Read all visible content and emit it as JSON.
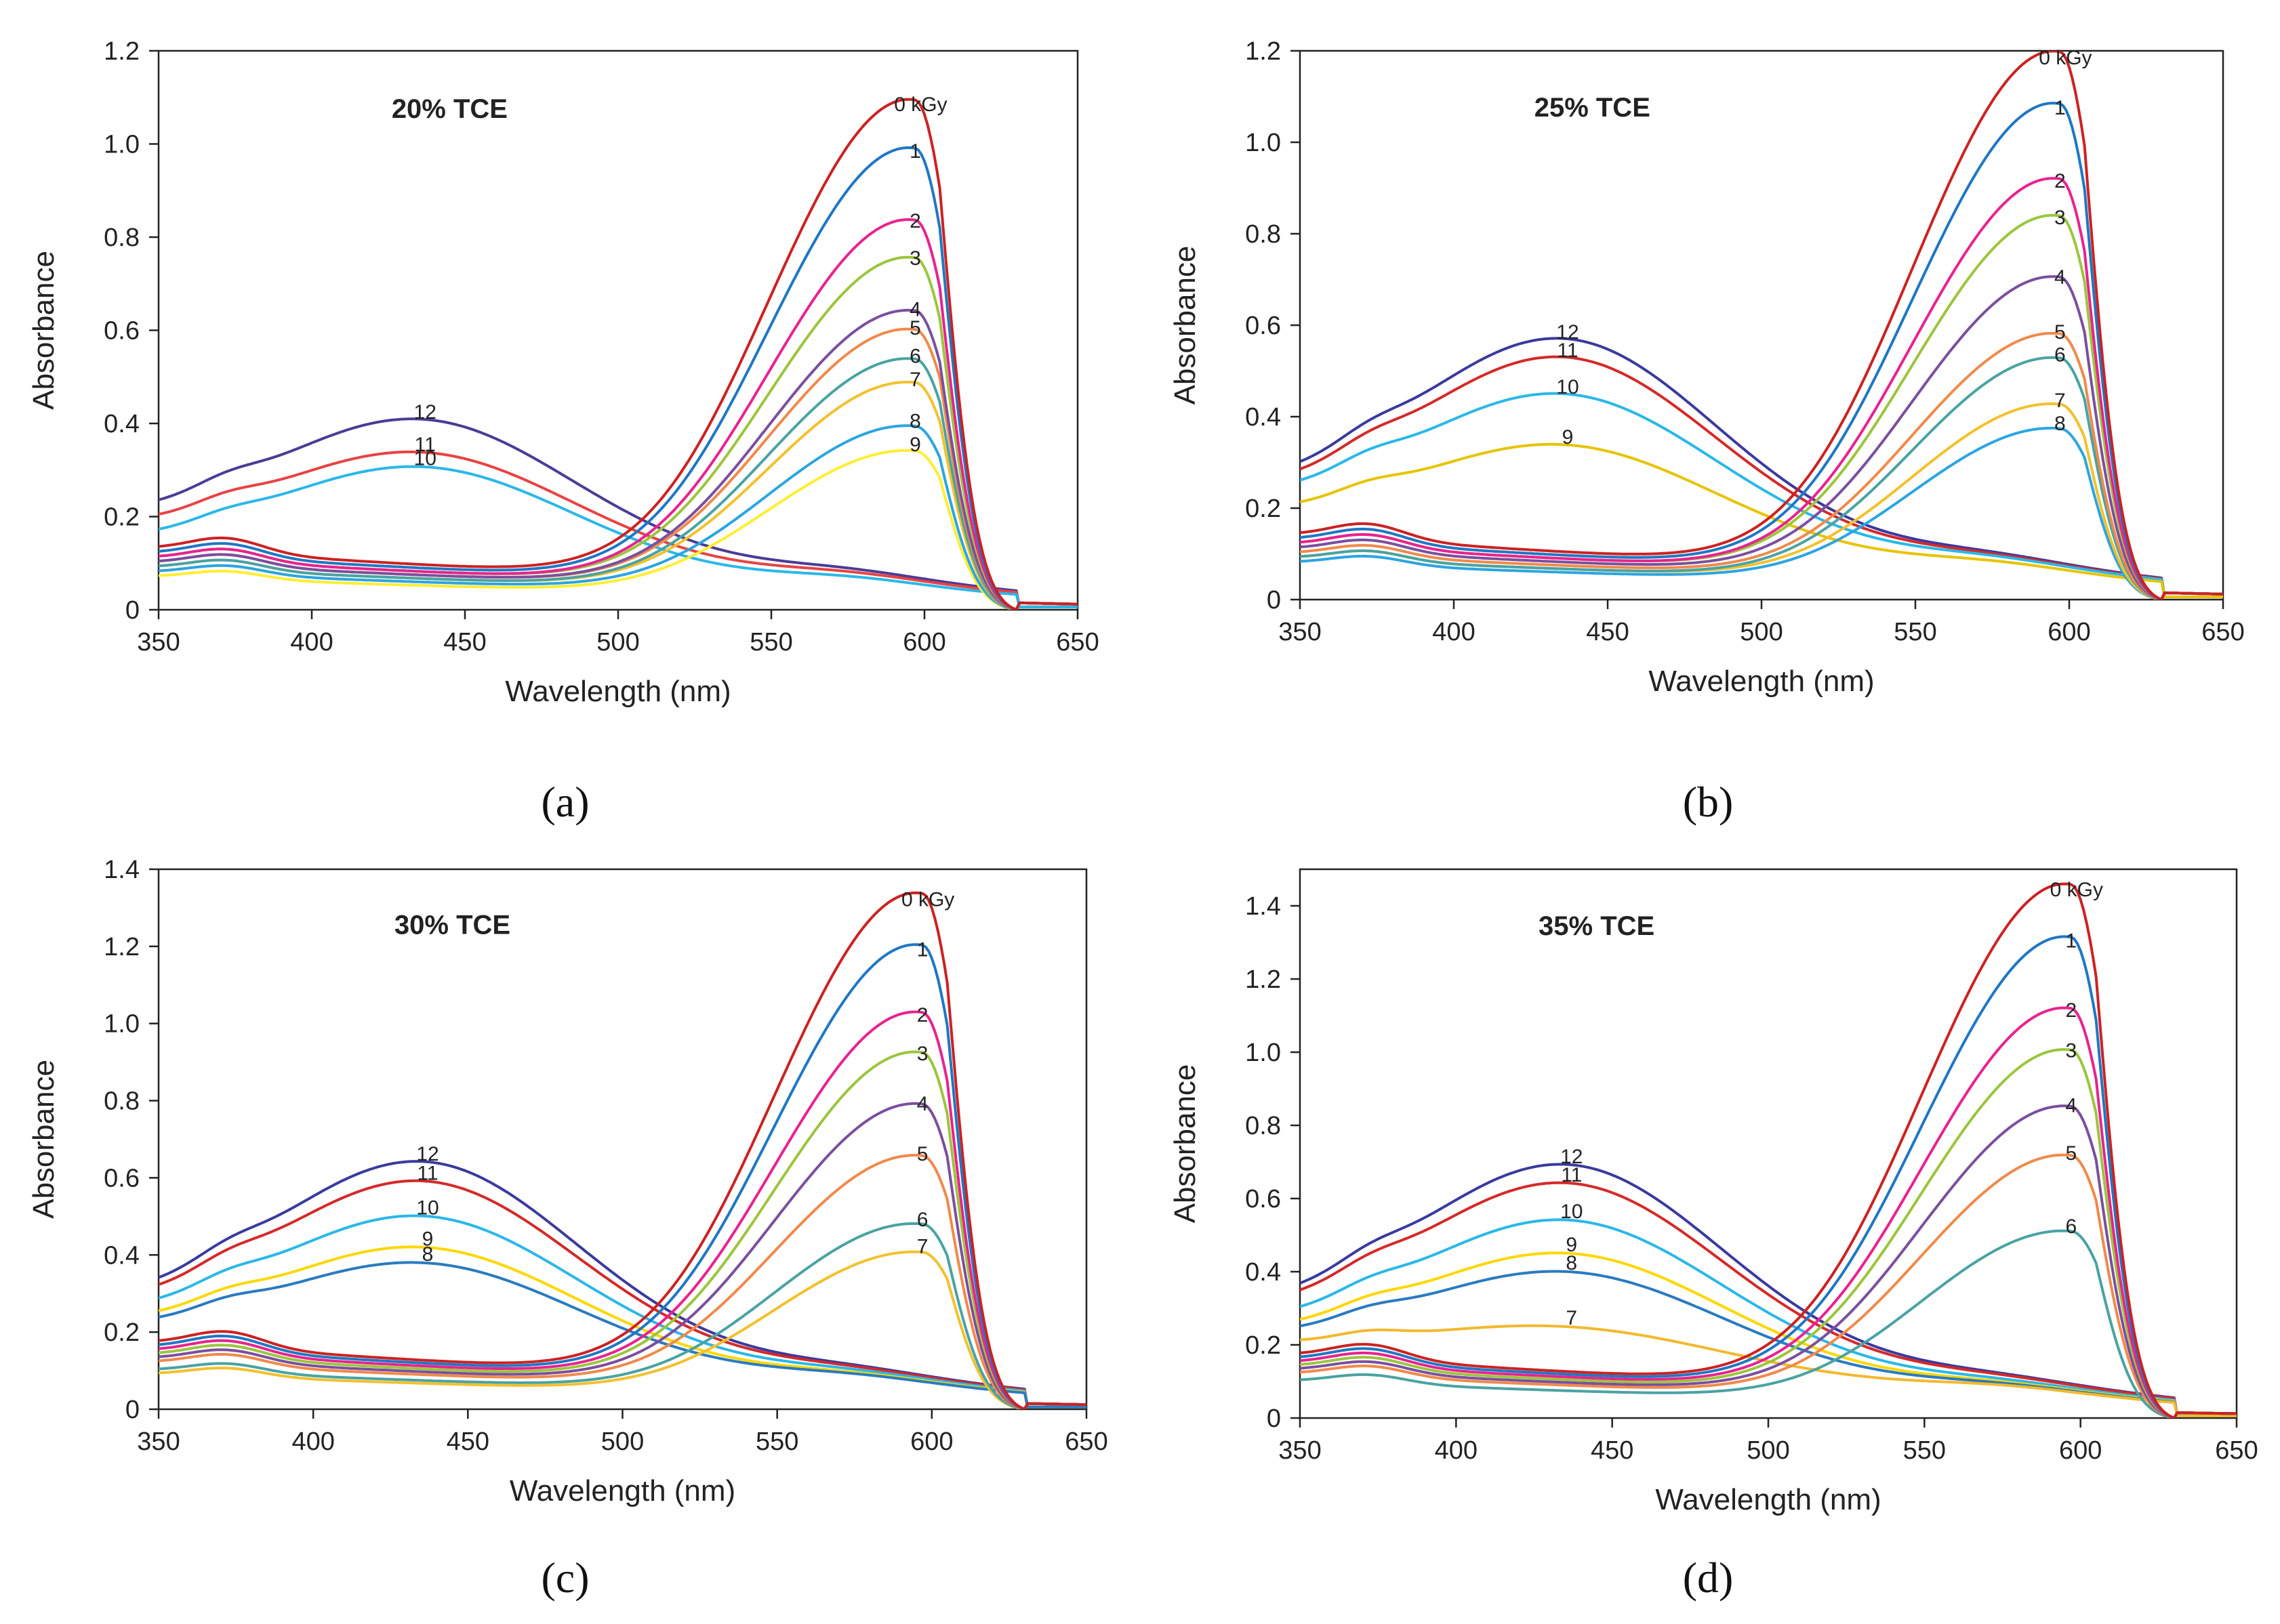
{
  "chart_data": [
    {
      "type": "line",
      "panel_label": "(a)",
      "title": "20% TCE",
      "xlabel": "Wavelength (nm)",
      "ylabel": "Absorbance",
      "xlim": [
        350,
        650
      ],
      "ylim": [
        0,
        1.2
      ],
      "xticks": [
        "350",
        "400",
        "450",
        "500",
        "550",
        "600",
        "650"
      ],
      "yticks": [
        "0",
        "0.2",
        "0.4",
        "0.6",
        "0.8",
        "1.0",
        "1.2"
      ],
      "band_type": "orange",
      "series": [
        {
          "name": "0 kGy",
          "label": "0 kGy",
          "color": "#cc2222",
          "p600": 1.05,
          "base": 0.13
        },
        {
          "name": "1",
          "label": "1",
          "color": "#1f77c4",
          "p600": 0.95,
          "base": 0.12
        },
        {
          "name": "2",
          "label": "2",
          "color": "#e8238f",
          "p600": 0.8,
          "base": 0.11
        },
        {
          "name": "3",
          "label": "3",
          "color": "#9bc53d",
          "p600": 0.72,
          "base": 0.11
        },
        {
          "name": "4",
          "label": "4",
          "color": "#7b4f9e",
          "p600": 0.61,
          "base": 0.1
        },
        {
          "name": "5",
          "label": "5",
          "color": "#f08a4b",
          "p600": 0.57,
          "base": 0.1
        },
        {
          "name": "6",
          "label": "6",
          "color": "#4aa3a3",
          "p600": 0.51,
          "base": 0.09
        },
        {
          "name": "7",
          "label": "7",
          "color": "#f2c12e",
          "p600": 0.46,
          "base": 0.09
        },
        {
          "name": "8",
          "label": "8",
          "color": "#2ca5e0",
          "p600": 0.37,
          "base": 0.08
        },
        {
          "name": "9",
          "label": "9",
          "color": "#ffee33",
          "p600": 0.32,
          "base": 0.07
        },
        {
          "name": "10",
          "label": "10",
          "color": "#2ab8e8",
          "p440": 0.29,
          "base": 0.12
        },
        {
          "name": "11",
          "label": "11",
          "color": "#e84343",
          "p440": 0.32,
          "base": 0.15
        },
        {
          "name": "12",
          "label": "12",
          "color": "#4b3c96",
          "p440": 0.39,
          "base": 0.17
        }
      ]
    },
    {
      "type": "line",
      "panel_label": "(b)",
      "title": "25% TCE",
      "xlabel": "Wavelength (nm)",
      "ylabel": "Absorbance",
      "xlim": [
        350,
        650
      ],
      "ylim": [
        0,
        1.2
      ],
      "xticks": [
        "350",
        "400",
        "450",
        "500",
        "550",
        "600",
        "650"
      ],
      "yticks": [
        "0",
        "0.2",
        "0.4",
        "0.6",
        "0.8",
        "1.0",
        "1.2"
      ],
      "band_type": "orange",
      "series": [
        {
          "name": "0 kGy",
          "label": "0 kGy",
          "color": "#cc2222",
          "p600": 1.15,
          "base": 0.14
        },
        {
          "name": "1",
          "label": "1",
          "color": "#1f77c4",
          "p600": 1.04,
          "base": 0.13
        },
        {
          "name": "2",
          "label": "2",
          "color": "#e8238f",
          "p600": 0.88,
          "base": 0.12
        },
        {
          "name": "3",
          "label": "3",
          "color": "#9bc53d",
          "p600": 0.8,
          "base": 0.12
        },
        {
          "name": "4",
          "label": "4",
          "color": "#7b4f9e",
          "p600": 0.67,
          "base": 0.11
        },
        {
          "name": "5",
          "label": "5",
          "color": "#f08a4b",
          "p600": 0.55,
          "base": 0.1
        },
        {
          "name": "6",
          "label": "6",
          "color": "#4aa3a3",
          "p600": 0.5,
          "base": 0.09
        },
        {
          "name": "7",
          "label": "7",
          "color": "#f2c12e",
          "p600": 0.4,
          "base": 0.09
        },
        {
          "name": "8",
          "label": "8",
          "color": "#2ca5e0",
          "p600": 0.35,
          "base": 0.08
        },
        {
          "name": "9",
          "label": "9",
          "color": "#e6c400",
          "p440": 0.32,
          "base": 0.16
        },
        {
          "name": "10",
          "label": "10",
          "color": "#2ab8e8",
          "p440": 0.43,
          "base": 0.19
        },
        {
          "name": "11",
          "label": "11",
          "color": "#d42a2a",
          "p440": 0.51,
          "base": 0.2
        },
        {
          "name": "12",
          "label": "12",
          "color": "#3a3a9e",
          "p440": 0.55,
          "base": 0.21
        }
      ]
    },
    {
      "type": "line",
      "panel_label": "(c)",
      "title": "30% TCE",
      "xlabel": "Wavelength (nm)",
      "ylabel": "Absorbance",
      "xlim": [
        350,
        650
      ],
      "ylim": [
        0,
        1.4
      ],
      "xticks": [
        "350",
        "400",
        "450",
        "500",
        "550",
        "600",
        "650"
      ],
      "yticks": [
        "0",
        "0.2",
        "0.4",
        "0.6",
        "0.8",
        "1.0",
        "1.2",
        "1.4"
      ],
      "band_type": "orange",
      "series": [
        {
          "name": "0 kGy",
          "label": "0 kGy",
          "color": "#cc2222",
          "p600": 1.28,
          "base": 0.17
        },
        {
          "name": "1",
          "label": "1",
          "color": "#1f77c4",
          "p600": 1.15,
          "base": 0.16
        },
        {
          "name": "2",
          "label": "2",
          "color": "#e8238f",
          "p600": 0.98,
          "base": 0.15
        },
        {
          "name": "3",
          "label": "3",
          "color": "#9bc53d",
          "p600": 0.88,
          "base": 0.14
        },
        {
          "name": "4",
          "label": "4",
          "color": "#7b4f9e",
          "p600": 0.75,
          "base": 0.13
        },
        {
          "name": "5",
          "label": "5",
          "color": "#f08a4b",
          "p600": 0.62,
          "base": 0.12
        },
        {
          "name": "6",
          "label": "6",
          "color": "#4aa3a3",
          "p600": 0.45,
          "base": 0.1
        },
        {
          "name": "7",
          "label": "7",
          "color": "#f2c12e",
          "p600": 0.38,
          "base": 0.09
        },
        {
          "name": "8",
          "label": "8",
          "color": "#2a7bc0",
          "p440": 0.36,
          "base": 0.18
        },
        {
          "name": "9",
          "label": "9",
          "color": "#ffd700",
          "p440": 0.4,
          "base": 0.19
        },
        {
          "name": "10",
          "label": "10",
          "color": "#2ab8e8",
          "p440": 0.48,
          "base": 0.21
        },
        {
          "name": "11",
          "label": "11",
          "color": "#d42a2a",
          "p440": 0.57,
          "base": 0.23
        },
        {
          "name": "12",
          "label": "12",
          "color": "#3a3a9e",
          "p440": 0.62,
          "base": 0.24
        }
      ]
    },
    {
      "type": "line",
      "panel_label": "(d)",
      "title": "35% TCE",
      "xlabel": "Wavelength (nm)",
      "ylabel": "Absorbance",
      "xlim": [
        350,
        650
      ],
      "ylim": [
        0,
        1.5
      ],
      "xticks": [
        "350",
        "400",
        "450",
        "500",
        "550",
        "600",
        "650"
      ],
      "yticks": [
        "0",
        "0.2",
        "0.4",
        "0.6",
        "0.8",
        "1.0",
        "1.2",
        "1.4"
      ],
      "band_type": "orange",
      "series": [
        {
          "name": "0 kGy",
          "label": "0 kGy",
          "color": "#cc2222",
          "p600": 1.4,
          "base": 0.17
        },
        {
          "name": "1",
          "label": "1",
          "color": "#1f77c4",
          "p600": 1.26,
          "base": 0.16
        },
        {
          "name": "2",
          "label": "2",
          "color": "#e8238f",
          "p600": 1.07,
          "base": 0.15
        },
        {
          "name": "3",
          "label": "3",
          "color": "#9bc53d",
          "p600": 0.96,
          "base": 0.14
        },
        {
          "name": "4",
          "label": "4",
          "color": "#7b4f9e",
          "p600": 0.81,
          "base": 0.13
        },
        {
          "name": "5",
          "label": "5",
          "color": "#f08a4b",
          "p600": 0.68,
          "base": 0.12
        },
        {
          "name": "6",
          "label": "6",
          "color": "#4aa3a3",
          "p600": 0.48,
          "base": 0.1
        },
        {
          "name": "7",
          "label": "7",
          "color": "#f2b92e",
          "p440": 0.23,
          "base": 0.18
        },
        {
          "name": "8",
          "label": "8",
          "color": "#2a7bc0",
          "p440": 0.38,
          "base": 0.19
        },
        {
          "name": "9",
          "label": "9",
          "color": "#ffd700",
          "p440": 0.43,
          "base": 0.2
        },
        {
          "name": "10",
          "label": "10",
          "color": "#2ab8e8",
          "p440": 0.52,
          "base": 0.22
        },
        {
          "name": "11",
          "label": "11",
          "color": "#d42a2a",
          "p440": 0.62,
          "base": 0.25
        },
        {
          "name": "12",
          "label": "12",
          "color": "#3a3a9e",
          "p440": 0.67,
          "base": 0.26
        }
      ]
    }
  ]
}
